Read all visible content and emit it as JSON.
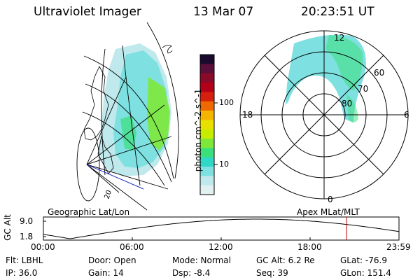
{
  "header": {
    "title": "Ultraviolet Imager",
    "date": "13 Mar 07",
    "time": "20:23:51 UT"
  },
  "colorbar": {
    "unit": "photon cm^-2 s^-1",
    "ticks": [
      "100",
      "10"
    ],
    "colors": [
      "#1a0a2e",
      "#5a0f3a",
      "#8a0a2a",
      "#b5001a",
      "#d4200c",
      "#ee6a00",
      "#f5b400",
      "#e8e000",
      "#c8ec00",
      "#7ee83a",
      "#3be07a",
      "#30d8c8",
      "#7ee0e0",
      "#bfe9ec",
      "#e2f0f2"
    ]
  },
  "geo_map": {
    "labels": {
      "lat_label": "20"
    }
  },
  "polar_plot": {
    "mlt_labels": {
      "top": "12",
      "left": "18",
      "right": "6",
      "bottom": "0"
    },
    "lat_labels": [
      "60",
      "70",
      "80"
    ]
  },
  "orbit_panel": {
    "ylabel": "GC Alt",
    "yticks": [
      "9.0",
      "1.8"
    ],
    "left_title": "Geographic Lat/Lon",
    "right_title": "Apex  MLat/MLT",
    "xticks": [
      "00:00",
      "06:00",
      "12:00",
      "18:00",
      "23:59"
    ],
    "current_time_fraction": 0.8528,
    "marker_color": "#c00000"
  },
  "info": {
    "filter": "Flt: LBHL",
    "ip": "IP: 36.0",
    "door": "Door: Open",
    "gain": "Gain: 14",
    "mode": "Mode: Normal",
    "dsp": "Dsp:  -8.4",
    "gc_alt": "GC Alt: 6.2 Re",
    "seq": "Seq: 39",
    "glat": "GLat: -76.9",
    "glon": "GLon: 151.4"
  }
}
